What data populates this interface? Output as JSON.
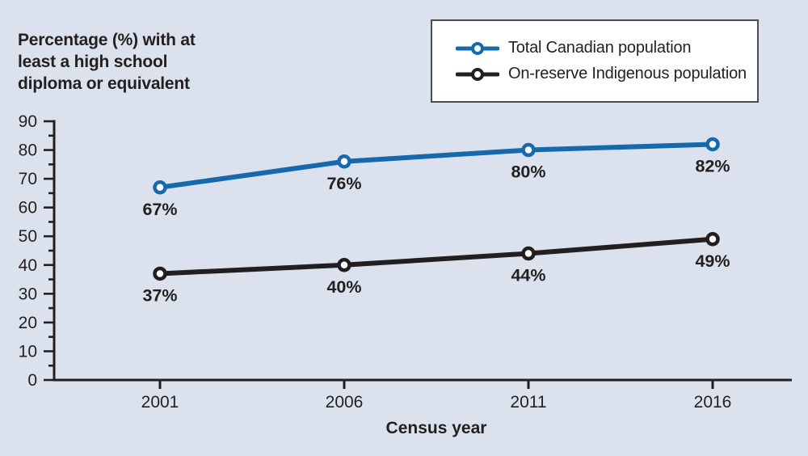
{
  "page": {
    "background_color": "#dbe2ee",
    "text_color": "#231f20"
  },
  "y_axis_title": {
    "line1": "Percentage (%) with at",
    "line2": "least a high school",
    "line3": "diploma or equivalent"
  },
  "legend": {
    "items": [
      {
        "label": "Total Canadian population",
        "color": "#1769ae"
      },
      {
        "label": "On-reserve Indigenous population",
        "color": "#231f20"
      }
    ]
  },
  "chart_data": {
    "type": "line",
    "title": "",
    "categories": [
      "2001",
      "2006",
      "2011",
      "2016"
    ],
    "series": [
      {
        "name": "Total Canadian population",
        "color": "#1769ae",
        "values": [
          67,
          76,
          80,
          82
        ],
        "point_labels": [
          "67%",
          "76%",
          "80%",
          "82%"
        ]
      },
      {
        "name": "On-reserve Indigenous population",
        "color": "#231f20",
        "values": [
          37,
          40,
          44,
          49
        ],
        "point_labels": [
          "37%",
          "40%",
          "44%",
          "49%"
        ]
      }
    ],
    "xlabel": "Census year",
    "ylabel": "Percentage (%) with at least a high school diploma or equivalent",
    "ylim": [
      0,
      90
    ],
    "y_major_step": 10,
    "y_minor_step": 5,
    "y_tick_labels": [
      "0",
      "10",
      "20",
      "30",
      "40",
      "50",
      "60",
      "70",
      "80",
      "90"
    ],
    "grid": false,
    "legend_position": "top-right",
    "marker": "open-circle",
    "axis_color": "#231f20"
  }
}
